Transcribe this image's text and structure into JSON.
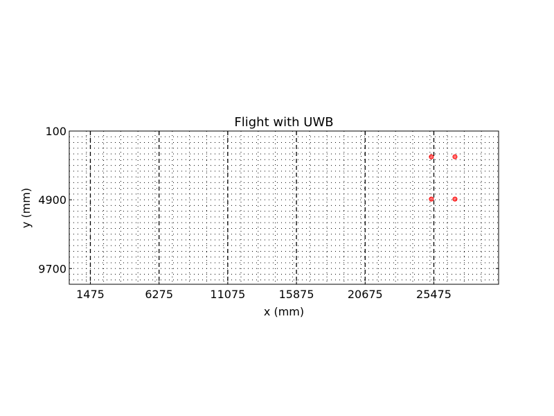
{
  "chart_data": {
    "type": "scatter",
    "title": "Flight with UWB",
    "xlabel": "x (mm)",
    "ylabel": "y (mm)",
    "xlim": [
      0,
      30000
    ],
    "ylim": [
      10800,
      100
    ],
    "y_inverted": true,
    "xticks": [
      1475,
      6275,
      11075,
      15875,
      20675,
      25475
    ],
    "yticks": [
      100,
      4900,
      9700
    ],
    "xtick_labels": [
      "1475",
      "6275",
      "11075",
      "15875",
      "20675",
      "25475"
    ],
    "ytick_labels": [
      "100",
      "4900",
      "9700"
    ],
    "grid": true,
    "series": [
      {
        "marker": "circle",
        "color": "#ff0000",
        "points": [
          {
            "x": 25300,
            "y": 1900
          },
          {
            "x": 26950,
            "y": 1900
          },
          {
            "x": 25300,
            "y": 4850
          },
          {
            "x": 26950,
            "y": 4850
          }
        ]
      }
    ]
  }
}
